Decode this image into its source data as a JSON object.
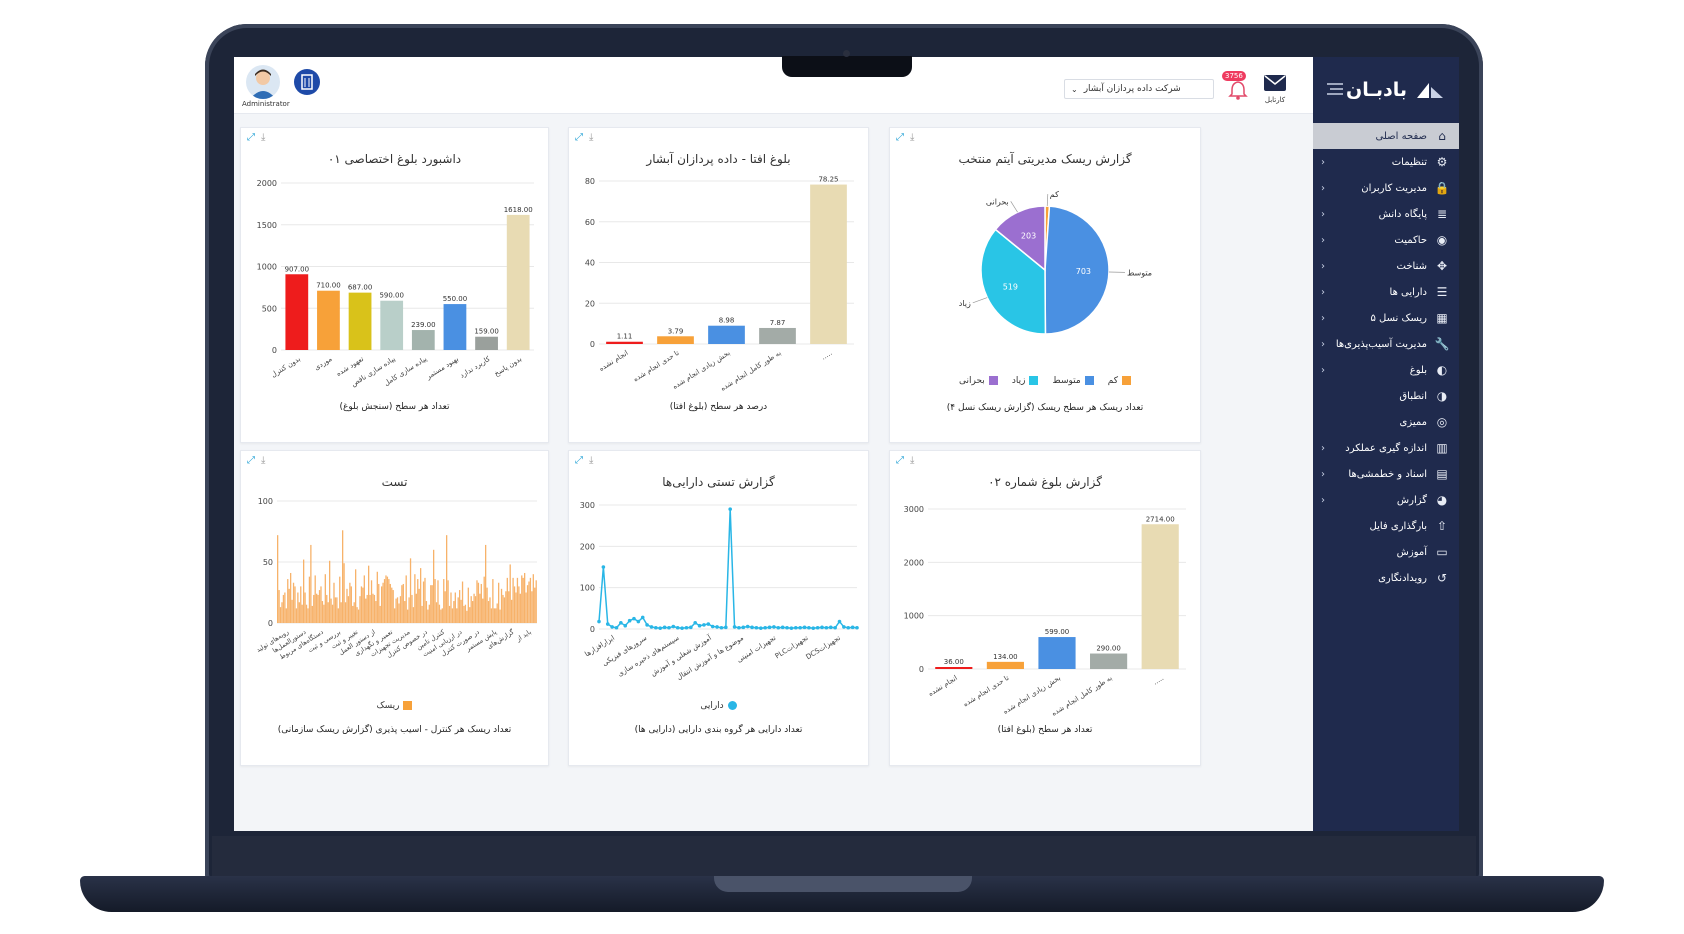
{
  "brand": {
    "name": "بادبـان"
  },
  "sidebar": {
    "items": [
      {
        "label": "صفحه اصلی",
        "icon": "home-icon",
        "glyph": "⌂",
        "active": true,
        "chevron": false
      },
      {
        "label": "تنظیمات",
        "icon": "gear-icon",
        "glyph": "⚙",
        "chevron": true
      },
      {
        "label": "مدیریت کاربران",
        "icon": "lock-icon",
        "glyph": "🔒",
        "chevron": true
      },
      {
        "label": "پایگاه دانش",
        "icon": "database-icon",
        "glyph": "≣",
        "chevron": true
      },
      {
        "label": "حاکمیت",
        "icon": "user-circle-icon",
        "glyph": "◉",
        "chevron": true
      },
      {
        "label": "شناخت",
        "icon": "move-icon",
        "glyph": "✥",
        "chevron": true
      },
      {
        "label": "دارایی ها",
        "icon": "list-icon",
        "glyph": "☰",
        "chevron": true
      },
      {
        "label": "ریسک نسل ۵",
        "icon": "grid-icon",
        "glyph": "▦",
        "chevron": true
      },
      {
        "label": "مدیریت آسیب‌پذیری‌ها",
        "icon": "wrench-icon",
        "glyph": "🔧",
        "chevron": true
      },
      {
        "label": "بلوغ",
        "icon": "half-circle-icon",
        "glyph": "◐",
        "chevron": true
      },
      {
        "label": "انطباق",
        "icon": "contrast-icon",
        "glyph": "◑",
        "chevron": false
      },
      {
        "label": "ممیزی",
        "icon": "eye-icon",
        "glyph": "◎",
        "chevron": false
      },
      {
        "label": "اندازه گیری عملکرد",
        "icon": "bar-chart-icon",
        "glyph": "▥",
        "chevron": true
      },
      {
        "label": "اسناد و خطمشی‌ها",
        "icon": "document-icon",
        "glyph": "▤",
        "chevron": true
      },
      {
        "label": "گزارش",
        "icon": "pie-chart-icon",
        "glyph": "◕",
        "chevron": true
      },
      {
        "label": "بارگذاری فایل",
        "icon": "upload-icon",
        "glyph": "⇧",
        "chevron": false
      },
      {
        "label": "آموزش",
        "icon": "video-icon",
        "glyph": "▭",
        "chevron": false
      },
      {
        "label": "رویدادنگاری",
        "icon": "history-icon",
        "glyph": "↺",
        "chevron": false
      }
    ]
  },
  "header": {
    "company": "شرکت داده پردازان آبشار",
    "notification_count": "3756",
    "mail_label": "کارتابل",
    "user_label": "Administrator"
  },
  "cards": {
    "maturity_report": {
      "title": "گزارش بلوغ شماره ۰۲",
      "footer": "تعداد هر سطح (بلوغ افتا)",
      "chart_data": {
        "type": "bar",
        "categories": [
          "انجام نشده",
          "تا حدی انجام شده",
          "بخش زیادی انجام شده",
          "به طور کامل انجام شده",
          "....."
        ],
        "values": [
          36.0,
          134.0,
          599.0,
          290.0,
          2714.0
        ],
        "value_labels": [
          "36.00",
          "134.00",
          "599.00",
          "290.00",
          "2714.00"
        ],
        "colors": [
          "#ee1c1c",
          "#f7a139",
          "#4a90e2",
          "#a3aba7",
          "#e8dbb3"
        ],
        "ylim": [
          0,
          3000
        ],
        "yticks": [
          "0",
          "1000",
          "2000",
          "3000"
        ]
      }
    },
    "asset_test": {
      "title": "گزارش تستی دارایی‌ها",
      "footer": "تعداد دارایی هر گروه بندی دارایی (دارایی ها)",
      "legend": "دارایی",
      "chart_data": {
        "type": "line",
        "series": [
          {
            "name": "دارایی",
            "values": [
              18,
              150,
              12,
              5,
              3,
              15,
              8,
              20,
              25,
              18,
              28,
              10,
              5,
              3,
              2,
              4,
              3,
              6,
              3,
              2,
              3,
              4,
              15,
              8,
              10,
              12,
              6,
              5,
              3,
              4,
              290,
              5,
              3,
              4,
              6,
              4,
              3,
              2,
              3,
              4,
              5,
              3,
              4,
              3,
              2,
              3,
              3,
              4,
              3,
              2,
              3,
              4,
              3,
              4,
              3,
              18,
              5,
              3,
              4,
              3
            ]
          }
        ],
        "tick_labels": [
          "ابزارافزارها",
          "سرورهای فیزیکی",
          "سیستم‌های ذخیره سازی",
          "آموزش شغلی و آموزش",
          "موضوع ها و آموزش انتقال",
          "تجهیزات امنیتی",
          "PLCتجهیزات",
          "DCSتجهیزات"
        ],
        "ylim": [
          0,
          300
        ],
        "yticks": [
          "0",
          "100",
          "200",
          "300"
        ],
        "color": "#29b6e6"
      }
    },
    "test": {
      "title": "تست",
      "footer": "تعداد ریسک هر کنترل - اسیب پذیری (گزارش ریسک سازمانی)",
      "legend": "ریسک",
      "chart_data": {
        "type": "bar",
        "series": [
          {
            "name": "ریسک",
            "values": []
          }
        ],
        "ylim": [
          0,
          100
        ],
        "yticks": [
          "0",
          "50",
          "100"
        ],
        "tick_labels": [
          "رویه‌های تولید",
          "دستورالعمل‌ها",
          "دستگاه‌های مربوط",
          "بررسی و ثبت",
          "تغییر و ثبت",
          "از دستور العمل",
          "تعمیر و نگهداری",
          "مدیریت تجهیزات",
          "در خصوص کنترل",
          "کنترل تامین",
          "در ارزیابی امنیت",
          "در صورت کنترل",
          "پایش مستمر",
          "گزارش‌های",
          "باید از"
        ],
        "color": "#f7b26a"
      }
    },
    "selected_item_risk": {
      "title": "گزارش ریسک مدیریتی آیتم منتخب",
      "footer": "تعداد ریسک هر سطح ریسک (گزارش ریسک نسل ۴)",
      "chart_data": {
        "type": "pie",
        "slices": [
          {
            "label": "کم",
            "value": 16,
            "color": "#f7a139"
          },
          {
            "label": "متوسط",
            "value": 703,
            "color": "#4a90e2"
          },
          {
            "label": "زیاد",
            "value": 519,
            "color": "#29c5e6"
          },
          {
            "label": "بحرانی",
            "value": 203,
            "color": "#9b6fd0"
          }
        ]
      }
    },
    "afta_maturity": {
      "title": "بلوغ افتا - داده پردازان آبشار",
      "footer": "درصد هر سطح (بلوغ افتا)",
      "chart_data": {
        "type": "bar",
        "categories": [
          "انجام نشده",
          "تا حدی انجام شده",
          "بخش زیادی انجام شده",
          "به طور کامل انجام شده",
          "....."
        ],
        "values": [
          1.11,
          3.79,
          8.98,
          7.87,
          78.25
        ],
        "value_labels": [
          "1.11",
          "3.79",
          "8.98",
          "7.87",
          "78.25"
        ],
        "colors": [
          "#ee1c1c",
          "#f7a139",
          "#4a90e2",
          "#a3aba7",
          "#e8dbb3"
        ],
        "ylim": [
          0,
          80
        ],
        "yticks": [
          "0",
          "20",
          "40",
          "60",
          "80"
        ]
      }
    },
    "custom_maturity": {
      "title": "داشبورد بلوغ اختصاصی ۰۱",
      "footer": "تعداد هر سطح (سنجش بلوغ)",
      "chart_data": {
        "type": "bar",
        "categories": [
          "بدون کنترل",
          "موردی",
          "تعهود شده",
          "پیاده سازی ناقص",
          "پیاده سازی کامل",
          "بهبود مستمر",
          "کاربرد ندارد",
          "بدون پاسخ"
        ],
        "values": [
          907,
          710,
          687,
          590,
          239,
          550,
          159,
          1618
        ],
        "value_labels": [
          "907.00",
          "710.00",
          "687.00",
          "590.00",
          "239.00",
          "550.00",
          "159.00",
          "1618.00"
        ],
        "colors": [
          "#ee1c1c",
          "#f7a139",
          "#d9c21a",
          "#b9cfc9",
          "#a3b3ad",
          "#4a90e2",
          "#9aa09c",
          "#e8dbb3"
        ],
        "ylim": [
          0,
          2000
        ],
        "yticks": [
          "0",
          "500",
          "1000",
          "1500",
          "2000"
        ]
      }
    }
  }
}
